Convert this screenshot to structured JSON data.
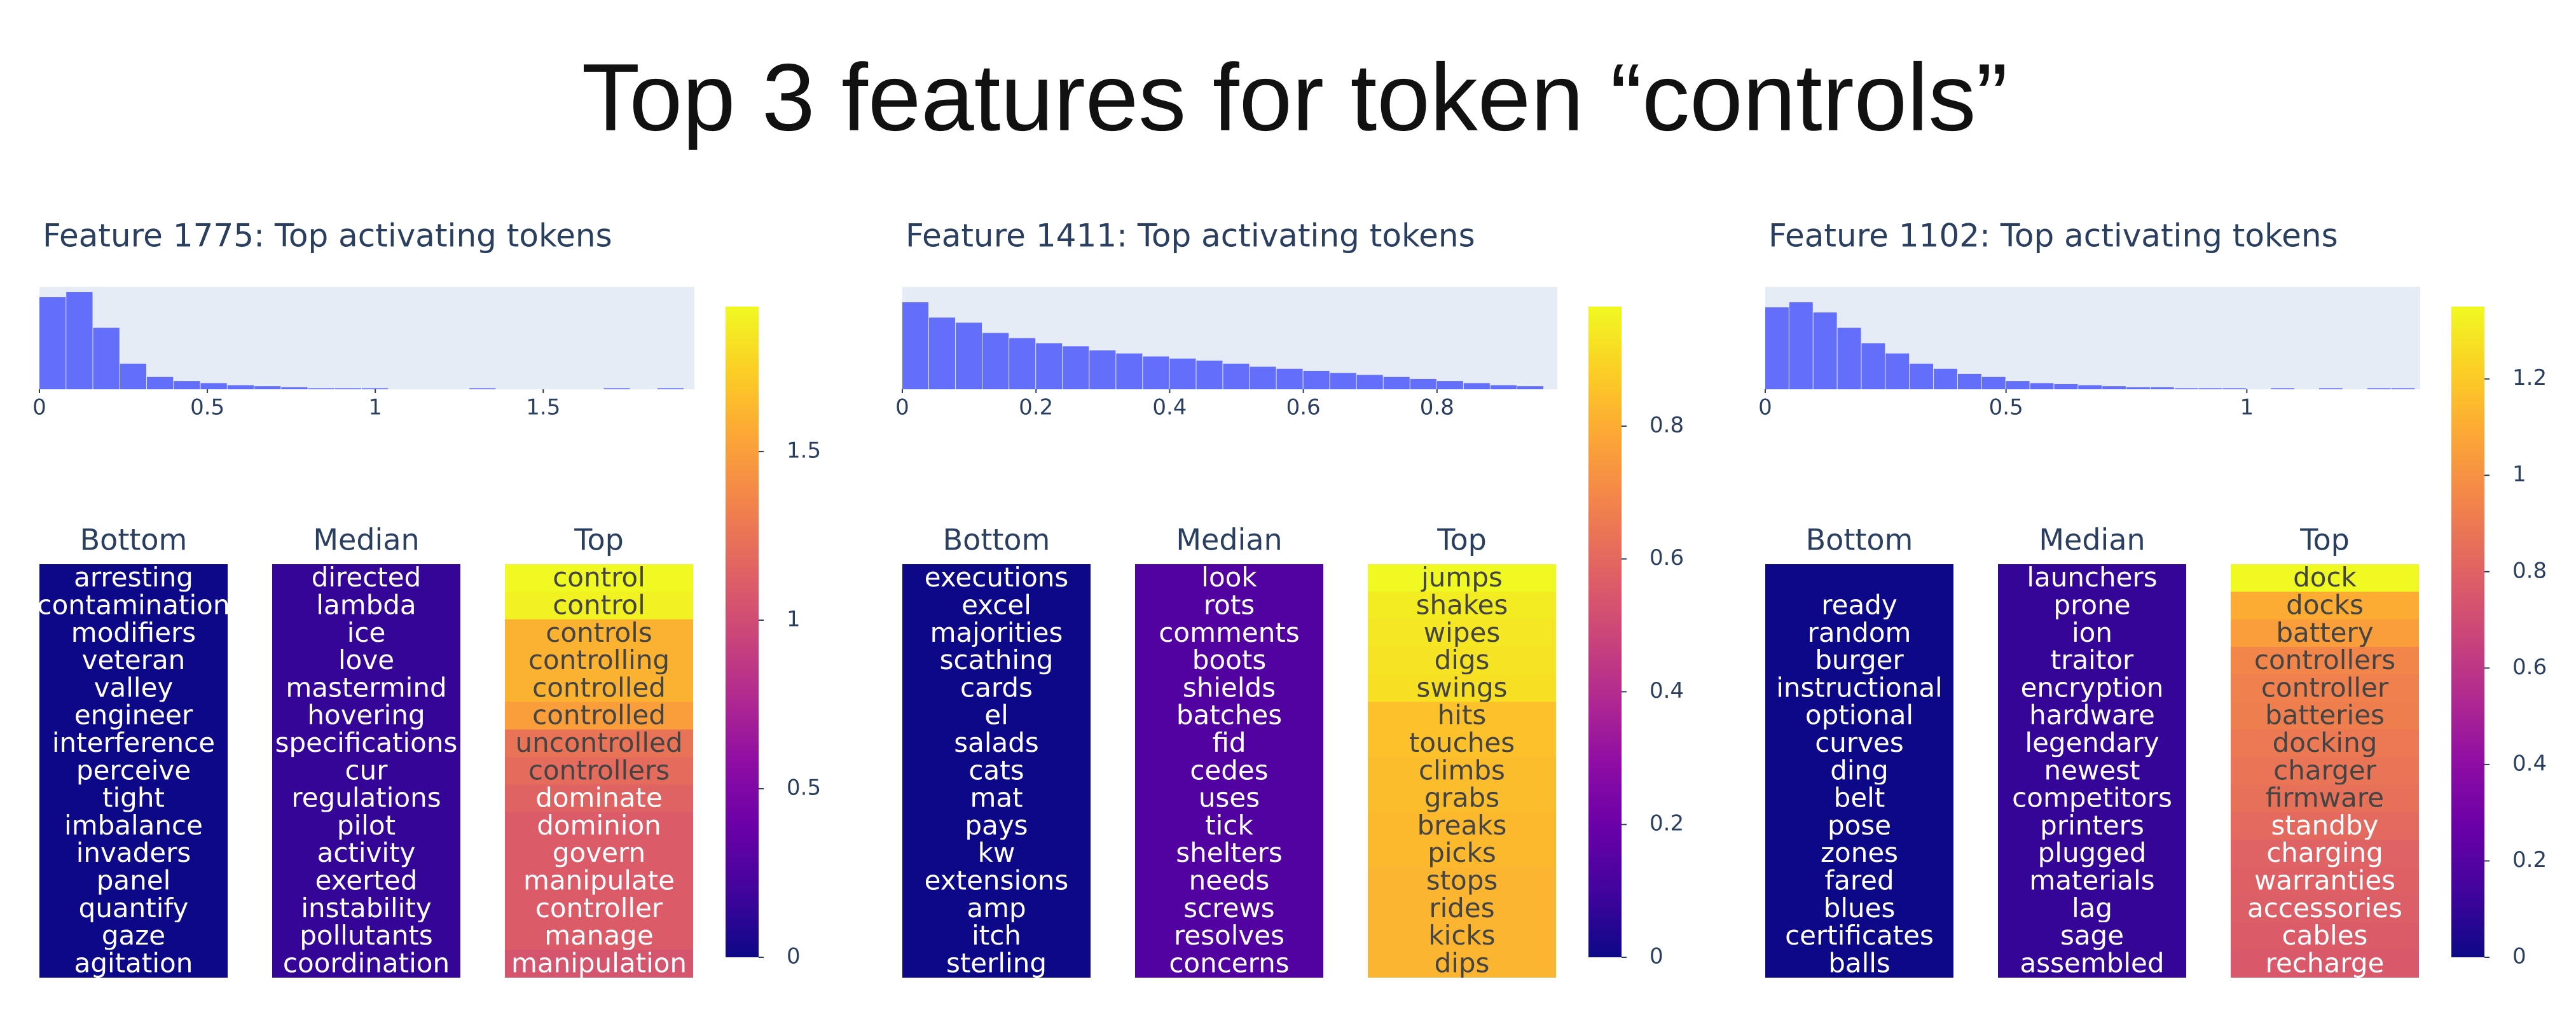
{
  "chart_data": {
    "type": "feature-panels",
    "title": "Top 3 features for token “controls”",
    "panels": [
      {
        "title": "Feature 1775: Top activating tokens",
        "histogram": {
          "bins": [
            0,
            0.08,
            0.16,
            0.24,
            0.32,
            0.4,
            0.48,
            0.56,
            0.64,
            0.72,
            0.8,
            0.88,
            0.96,
            1.04,
            1.12,
            1.2,
            1.28,
            1.36,
            1.44,
            1.52,
            1.6,
            1.68,
            1.76,
            1.84,
            1.92
          ],
          "counts": [
            90,
            95,
            60,
            25,
            12,
            8,
            6,
            4,
            3,
            2,
            1,
            1,
            1,
            0,
            0,
            0,
            1,
            0,
            0,
            0,
            0,
            1,
            0,
            1
          ],
          "xlim": [
            0,
            1.95
          ],
          "ylim": [
            0,
            100
          ],
          "xticks": [
            0,
            0.5,
            1,
            1.5
          ]
        },
        "columns": [
          {
            "name": "Bottom",
            "tokens": [
              "arresting",
              "contamination",
              "modifiers",
              "veteran",
              "valley",
              "engineer",
              "interference",
              "perceive",
              "tight",
              "imbalance",
              "invaders",
              "panel",
              "quantify",
              "gaze",
              "agitation"
            ],
            "values": [
              0,
              0,
              0,
              0,
              0,
              0,
              0,
              0,
              0,
              0,
              0,
              0,
              0,
              0,
              0
            ]
          },
          {
            "name": "Median",
            "tokens": [
              "directed",
              "lambda",
              "ice",
              "love",
              "mastermind",
              "hovering",
              "specifications",
              "cur",
              "regulations",
              "pilot",
              "activity",
              "exerted",
              "instability",
              "pollutants",
              "coordination"
            ],
            "values": [
              0.15,
              0.15,
              0.15,
              0.15,
              0.15,
              0.15,
              0.15,
              0.15,
              0.15,
              0.15,
              0.15,
              0.15,
              0.15,
              0.15,
              0.15
            ]
          },
          {
            "name": "Top",
            "tokens": [
              "control",
              "control",
              "controls",
              "controlling",
              "controlled",
              "controlled",
              "uncontrolled",
              "controllers",
              "dominate",
              "dominion",
              "govern",
              "manipulate",
              "controller",
              "manage",
              "manipulation"
            ],
            "values": [
              1.93,
              1.9,
              1.6,
              1.6,
              1.6,
              1.5,
              1.25,
              1.2,
              1.15,
              1.1,
              1.1,
              1.1,
              1.1,
              1.1,
              1.05
            ]
          }
        ],
        "colorbar": {
          "range": [
            0,
            1.93
          ],
          "ticks": [
            0,
            0.5,
            1,
            1.5
          ]
        }
      },
      {
        "title": "Feature 1411: Top activating tokens",
        "histogram": {
          "bins": [
            0,
            0.04,
            0.08,
            0.12,
            0.16,
            0.2,
            0.24,
            0.28,
            0.32,
            0.36,
            0.4,
            0.44,
            0.48,
            0.52,
            0.56,
            0.6,
            0.64,
            0.68,
            0.72,
            0.76,
            0.8,
            0.84,
            0.88,
            0.92,
            0.96
          ],
          "counts": [
            85,
            70,
            65,
            55,
            50,
            45,
            42,
            38,
            35,
            32,
            30,
            28,
            25,
            22,
            20,
            18,
            16,
            14,
            12,
            10,
            8,
            6,
            4,
            3
          ],
          "xlim": [
            0,
            0.98
          ],
          "ylim": [
            0,
            100
          ],
          "xticks": [
            0,
            0.2,
            0.4,
            0.6,
            0.8
          ]
        },
        "columns": [
          {
            "name": "Bottom",
            "tokens": [
              "executions",
              "excel",
              "majorities",
              "scathing",
              "cards",
              "el",
              "salads",
              "cats",
              "mat",
              "pays",
              "kw",
              "extensions",
              "amp",
              "itch",
              "sterling"
            ],
            "values": [
              0,
              0,
              0,
              0,
              0,
              0,
              0,
              0,
              0,
              0,
              0,
              0,
              0,
              0,
              0
            ]
          },
          {
            "name": "Median",
            "tokens": [
              "look",
              "rots",
              "comments",
              "boots",
              "shields",
              "batches",
              "fid",
              "cedes",
              "uses",
              "tick",
              "shelters",
              "needs",
              "screws",
              "resolves",
              "concerns"
            ],
            "values": [
              0.14,
              0.14,
              0.14,
              0.14,
              0.14,
              0.14,
              0.14,
              0.14,
              0.14,
              0.14,
              0.14,
              0.14,
              0.14,
              0.14,
              0.14
            ]
          },
          {
            "name": "Top",
            "tokens": [
              "jumps",
              "shakes",
              "wipes",
              "digs",
              "swings",
              "hits",
              "touches",
              "climbs",
              "grabs",
              "breaks",
              "picks",
              "stops",
              "rides",
              "kicks",
              "dips"
            ],
            "values": [
              0.98,
              0.95,
              0.94,
              0.93,
              0.92,
              0.85,
              0.85,
              0.84,
              0.84,
              0.83,
              0.83,
              0.82,
              0.82,
              0.82,
              0.82
            ]
          }
        ],
        "colorbar": {
          "range": [
            0,
            0.98
          ],
          "ticks": [
            0,
            0.2,
            0.4,
            0.6,
            0.8
          ]
        }
      },
      {
        "title": "Feature 1102: Top activating tokens",
        "histogram": {
          "bins": [
            0,
            0.05,
            0.1,
            0.15,
            0.2,
            0.25,
            0.3,
            0.35,
            0.4,
            0.45,
            0.5,
            0.55,
            0.6,
            0.65,
            0.7,
            0.75,
            0.8,
            0.85,
            0.9,
            0.95,
            1,
            1.05,
            1.1,
            1.15,
            1.2,
            1.25,
            1.3,
            1.35
          ],
          "counts": [
            80,
            85,
            75,
            60,
            45,
            35,
            25,
            20,
            15,
            12,
            8,
            6,
            5,
            4,
            3,
            2,
            2,
            1,
            1,
            1,
            0,
            1,
            0,
            1,
            0,
            1,
            1
          ],
          "xlim": [
            0,
            1.36
          ],
          "ylim": [
            0,
            100
          ],
          "xticks": [
            0,
            0.5,
            1
          ]
        },
        "columns": [
          {
            "name": "Bottom",
            "tokens": [
              null,
              "ready",
              "random",
              "burger",
              "instructional",
              "optional",
              "curves",
              "ding",
              "belt",
              "pose",
              "zones",
              "fared",
              "blues",
              "certificates",
              "balls"
            ],
            "values": [
              0,
              0,
              0,
              0,
              0,
              0,
              0,
              0,
              0,
              0,
              0,
              0,
              0,
              0,
              0
            ]
          },
          {
            "name": "Median",
            "tokens": [
              "launchers",
              "prone",
              "ion",
              "traitor",
              "encryption",
              "hardware",
              "legendary",
              "newest",
              "competitors",
              "printers",
              "plugged",
              "materials",
              "lag",
              "sage",
              "assembled"
            ],
            "values": [
              0.1,
              0.1,
              0.1,
              0.1,
              0.1,
              0.1,
              0.1,
              0.1,
              0.1,
              0.1,
              0.1,
              0.1,
              0.1,
              0.1,
              0.1
            ]
          },
          {
            "name": "Top",
            "tokens": [
              "dock",
              "docks",
              "battery",
              "controllers",
              "controller",
              "batteries",
              "docking",
              "charger",
              "firmware",
              "standby",
              "charging",
              "warranties",
              "accessories",
              "cables",
              "recharge"
            ],
            "values": [
              1.35,
              1.1,
              1.05,
              0.95,
              0.93,
              0.92,
              0.9,
              0.88,
              0.86,
              0.83,
              0.8,
              0.79,
              0.78,
              0.77,
              0.76
            ]
          }
        ],
        "colorbar": {
          "range": [
            0,
            1.35
          ],
          "ticks": [
            0,
            0.2,
            0.4,
            0.6,
            0.8,
            1,
            1.2
          ]
        }
      }
    ]
  }
}
